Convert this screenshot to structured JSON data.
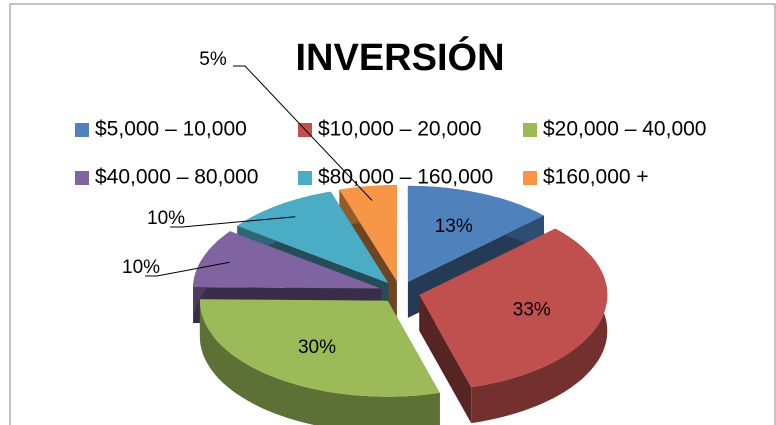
{
  "chart_data": {
    "type": "pie",
    "title": "INVERSIÓN",
    "categories": [
      "$5,000 – 10,000",
      "$10,000 – 20,000",
      "$20,000 – 40,000",
      "$40,000 – 80,000",
      "$80,000 – 160,000",
      "$160,000 +"
    ],
    "values": [
      13,
      33,
      30,
      10,
      10,
      5
    ],
    "value_labels": [
      "13%",
      "33%",
      "30%",
      "10%",
      "10%",
      "5%"
    ],
    "colors": [
      "#4f81bd",
      "#c0504d",
      "#9bbb59",
      "#8064a2",
      "#4bacc6",
      "#f79646"
    ],
    "legend": "top"
  }
}
